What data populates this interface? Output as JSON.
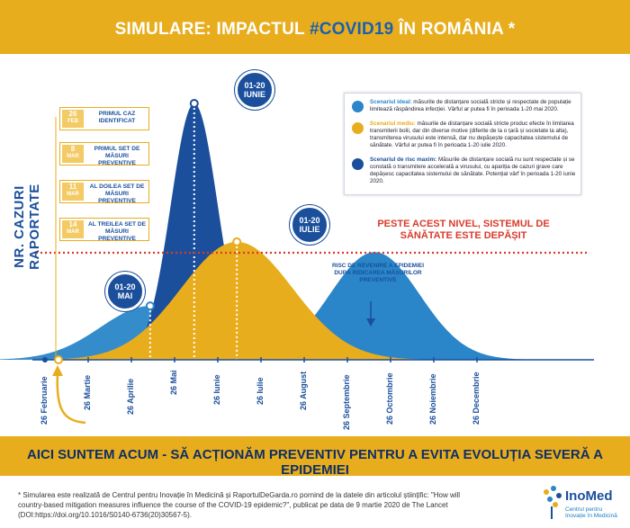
{
  "header": {
    "title_prefix": "SIMULARE: IMPACTUL ",
    "title_hashtag": "#COVID19",
    "title_suffix": " ÎN ROMÂNIA *"
  },
  "chart_data": {
    "type": "area",
    "ylabel": "NR. CAZURI RAPORTATE",
    "x_ticks": [
      "26 Februarie",
      "26 Martie",
      "26 Aprilie",
      "26 Mai",
      "26 Iunie",
      "26 Iulie",
      "26 August",
      "26 Septembrie",
      "26 Octombrie",
      "26 Noiembrie",
      "26 Decembrie"
    ],
    "threshold_label": "PESTE ACEST NIVEL, SISTEMUL DE SĂNĂTATE ESTE DEPĂȘIT",
    "series": [
      {
        "name": "Scenariul de risc maxim",
        "peak_date": "2020-06-10",
        "peak_relative": 1.0
      },
      {
        "name": "Scenariul mediu",
        "peak_date": "2020-07-10",
        "peak_relative": 0.46
      },
      {
        "name": "Scenariul ideal",
        "peak_date": "2020-05-10",
        "peak_relative": 0.21
      },
      {
        "name": "Risc de revenire",
        "peak_date": "2020-10-15",
        "peak_relative": 0.42
      }
    ],
    "callouts": [
      {
        "line1": "01-20",
        "line2": "IUNIE"
      },
      {
        "line1": "01-20",
        "line2": "IULIE"
      },
      {
        "line1": "01-20",
        "line2": "MAI"
      }
    ],
    "annotation": "RISC DE REVENIRE A EPIDEMIEI DUPĂ RIDICAREA MĂSURILOR PREVENTIVE",
    "colors": {
      "max": "#1b4f9c",
      "medium": "#e8ad1d",
      "ideal": "#2a86c8",
      "threshold": "#d93b2b",
      "second": "#2a86c8"
    }
  },
  "events": [
    {
      "day": "26",
      "month": "FEB",
      "text": "PRIMUL CAZ IDENTIFICAT"
    },
    {
      "day": "8",
      "month": "MAR",
      "text": "PRIMUL SET DE MĂSURI PREVENTIVE"
    },
    {
      "day": "11",
      "month": "MAR",
      "text": "AL DOILEA SET DE MĂSURI PREVENTIVE"
    },
    {
      "day": "14",
      "month": "MAR",
      "text": "AL TREILEA SET DE MĂSURI PREVENTIVE"
    }
  ],
  "legend": [
    {
      "name": "Scenariul ideal:",
      "text": "măsurile de distanțare socială stricte și respectate de populație limitează răspândirea infecției. Vârful ar putea fi în perioada 1-20 mai 2020.",
      "color": "#2a86c8"
    },
    {
      "name": "Scenariul mediu:",
      "text": "măsurile de distanțare socială stricte produc efecte în limitarea transmiterii bolii, dar din diverse motive (diferite de la o țară și societate la alta), transmiterea virusului este intensă, dar nu depășește capacitatea sistemului de sănătate. Vârful ar putea fi în perioada 1-20 iulie 2020.",
      "color": "#e8ad1d"
    },
    {
      "name": "Scenariul de risc maxim:",
      "text": "Măsurile de distanțare socială nu sunt respectate și se constată o transmitere accelerată a virusului, cu apariția de cazuri grave care depășesc capacitatea sistemului de sănătate. Potențial vârf în perioada 1-20 iunie 2020.",
      "color": "#1b4f9c"
    }
  ],
  "banner": "AICI SUNTEM ACUM - SĂ ACȚIONĂM PREVENTIV PENTRU A EVITA EVOLUȚIA SEVERĂ A EPIDEMIEI",
  "footnote": "* Simularea este realizată de Centrul pentru Inovație în Medicină și RaportulDeGarda.ro pornind de la datele din articolul științific: \"How will country-based mitigation measures influence the course of the COVID-19 epidemic?\", publicat pe data de 9 martie 2020 de The Lancet (DOI:https://doi.org/10.1016/S0140-6736(20)30567-5).",
  "logo": {
    "name": "InoMed",
    "sub": "Centrul pentru Inovație în Medicină"
  }
}
